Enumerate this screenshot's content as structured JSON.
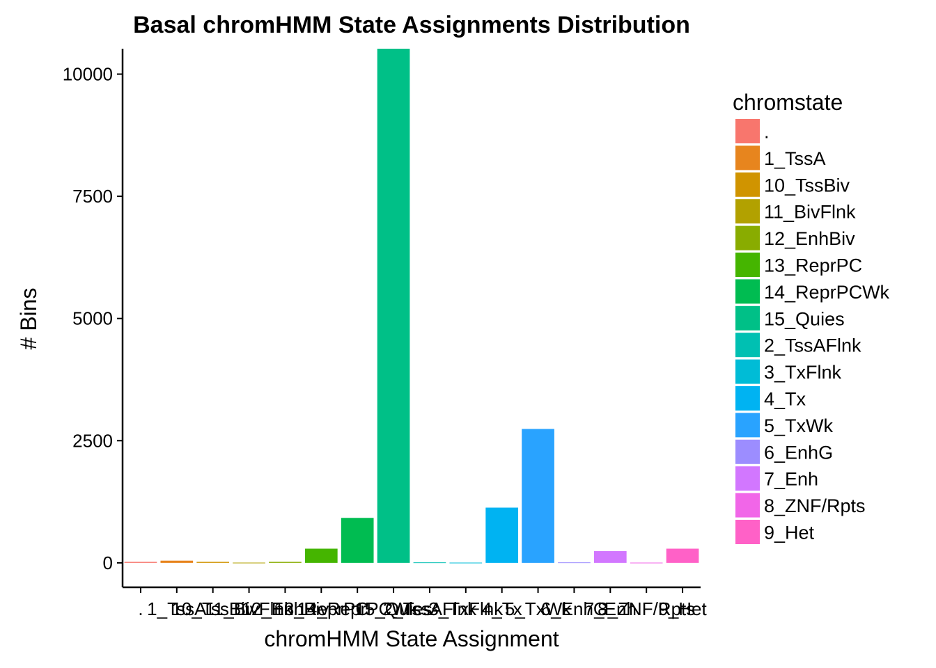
{
  "chart_data": {
    "type": "bar",
    "title": "Basal chromHMM State Assignments Distribution",
    "xlabel": "chromHMM State Assignment",
    "ylabel": "# Bins",
    "ylim": [
      -500,
      10520
    ],
    "yticks": [
      0,
      2500,
      5000,
      7500,
      10000
    ],
    "yticklabels": [
      "0",
      "2500",
      "5000",
      "7500",
      "10000"
    ],
    "categories": [
      ".",
      "1_TssA",
      "10_TssBiv",
      "11_BivFlnk",
      "12_EnhBiv",
      "13_ReprPC",
      "14_ReprPCWk",
      "15_Quies",
      "2_TssAFlnk",
      "3_TxFlnk",
      "4_Tx",
      "5_TxWk",
      "6_EnhG",
      "7_Enh",
      "8_ZNF/Rpts",
      "9_Het"
    ],
    "values": [
      20,
      45,
      20,
      5,
      20,
      290,
      920,
      10520,
      10,
      5,
      1130,
      2740,
      10,
      240,
      5,
      290
    ],
    "colors": [
      "#F8766D",
      "#E7851E",
      "#D09400",
      "#B2A100",
      "#89AC00",
      "#45B500",
      "#00BC51",
      "#00C087",
      "#00C0B2",
      "#00BCD6",
      "#00B3F2",
      "#29A3FF",
      "#9C8DFF",
      "#D277FF",
      "#F166E8",
      "#FF61C7"
    ],
    "grid": false,
    "legend": {
      "title": "chromstate",
      "placement": "right",
      "labels": [
        ".",
        "1_TssA",
        "10_TssBiv",
        "11_BivFlnk",
        "12_EnhBiv",
        "13_ReprPC",
        "14_ReprPCWk",
        "15_Quies",
        "2_TssAFlnk",
        "3_TxFlnk",
        "4_Tx",
        "5_TxWk",
        "6_EnhG",
        "7_Enh",
        "8_ZNF/Rpts",
        "9_Het"
      ]
    }
  }
}
